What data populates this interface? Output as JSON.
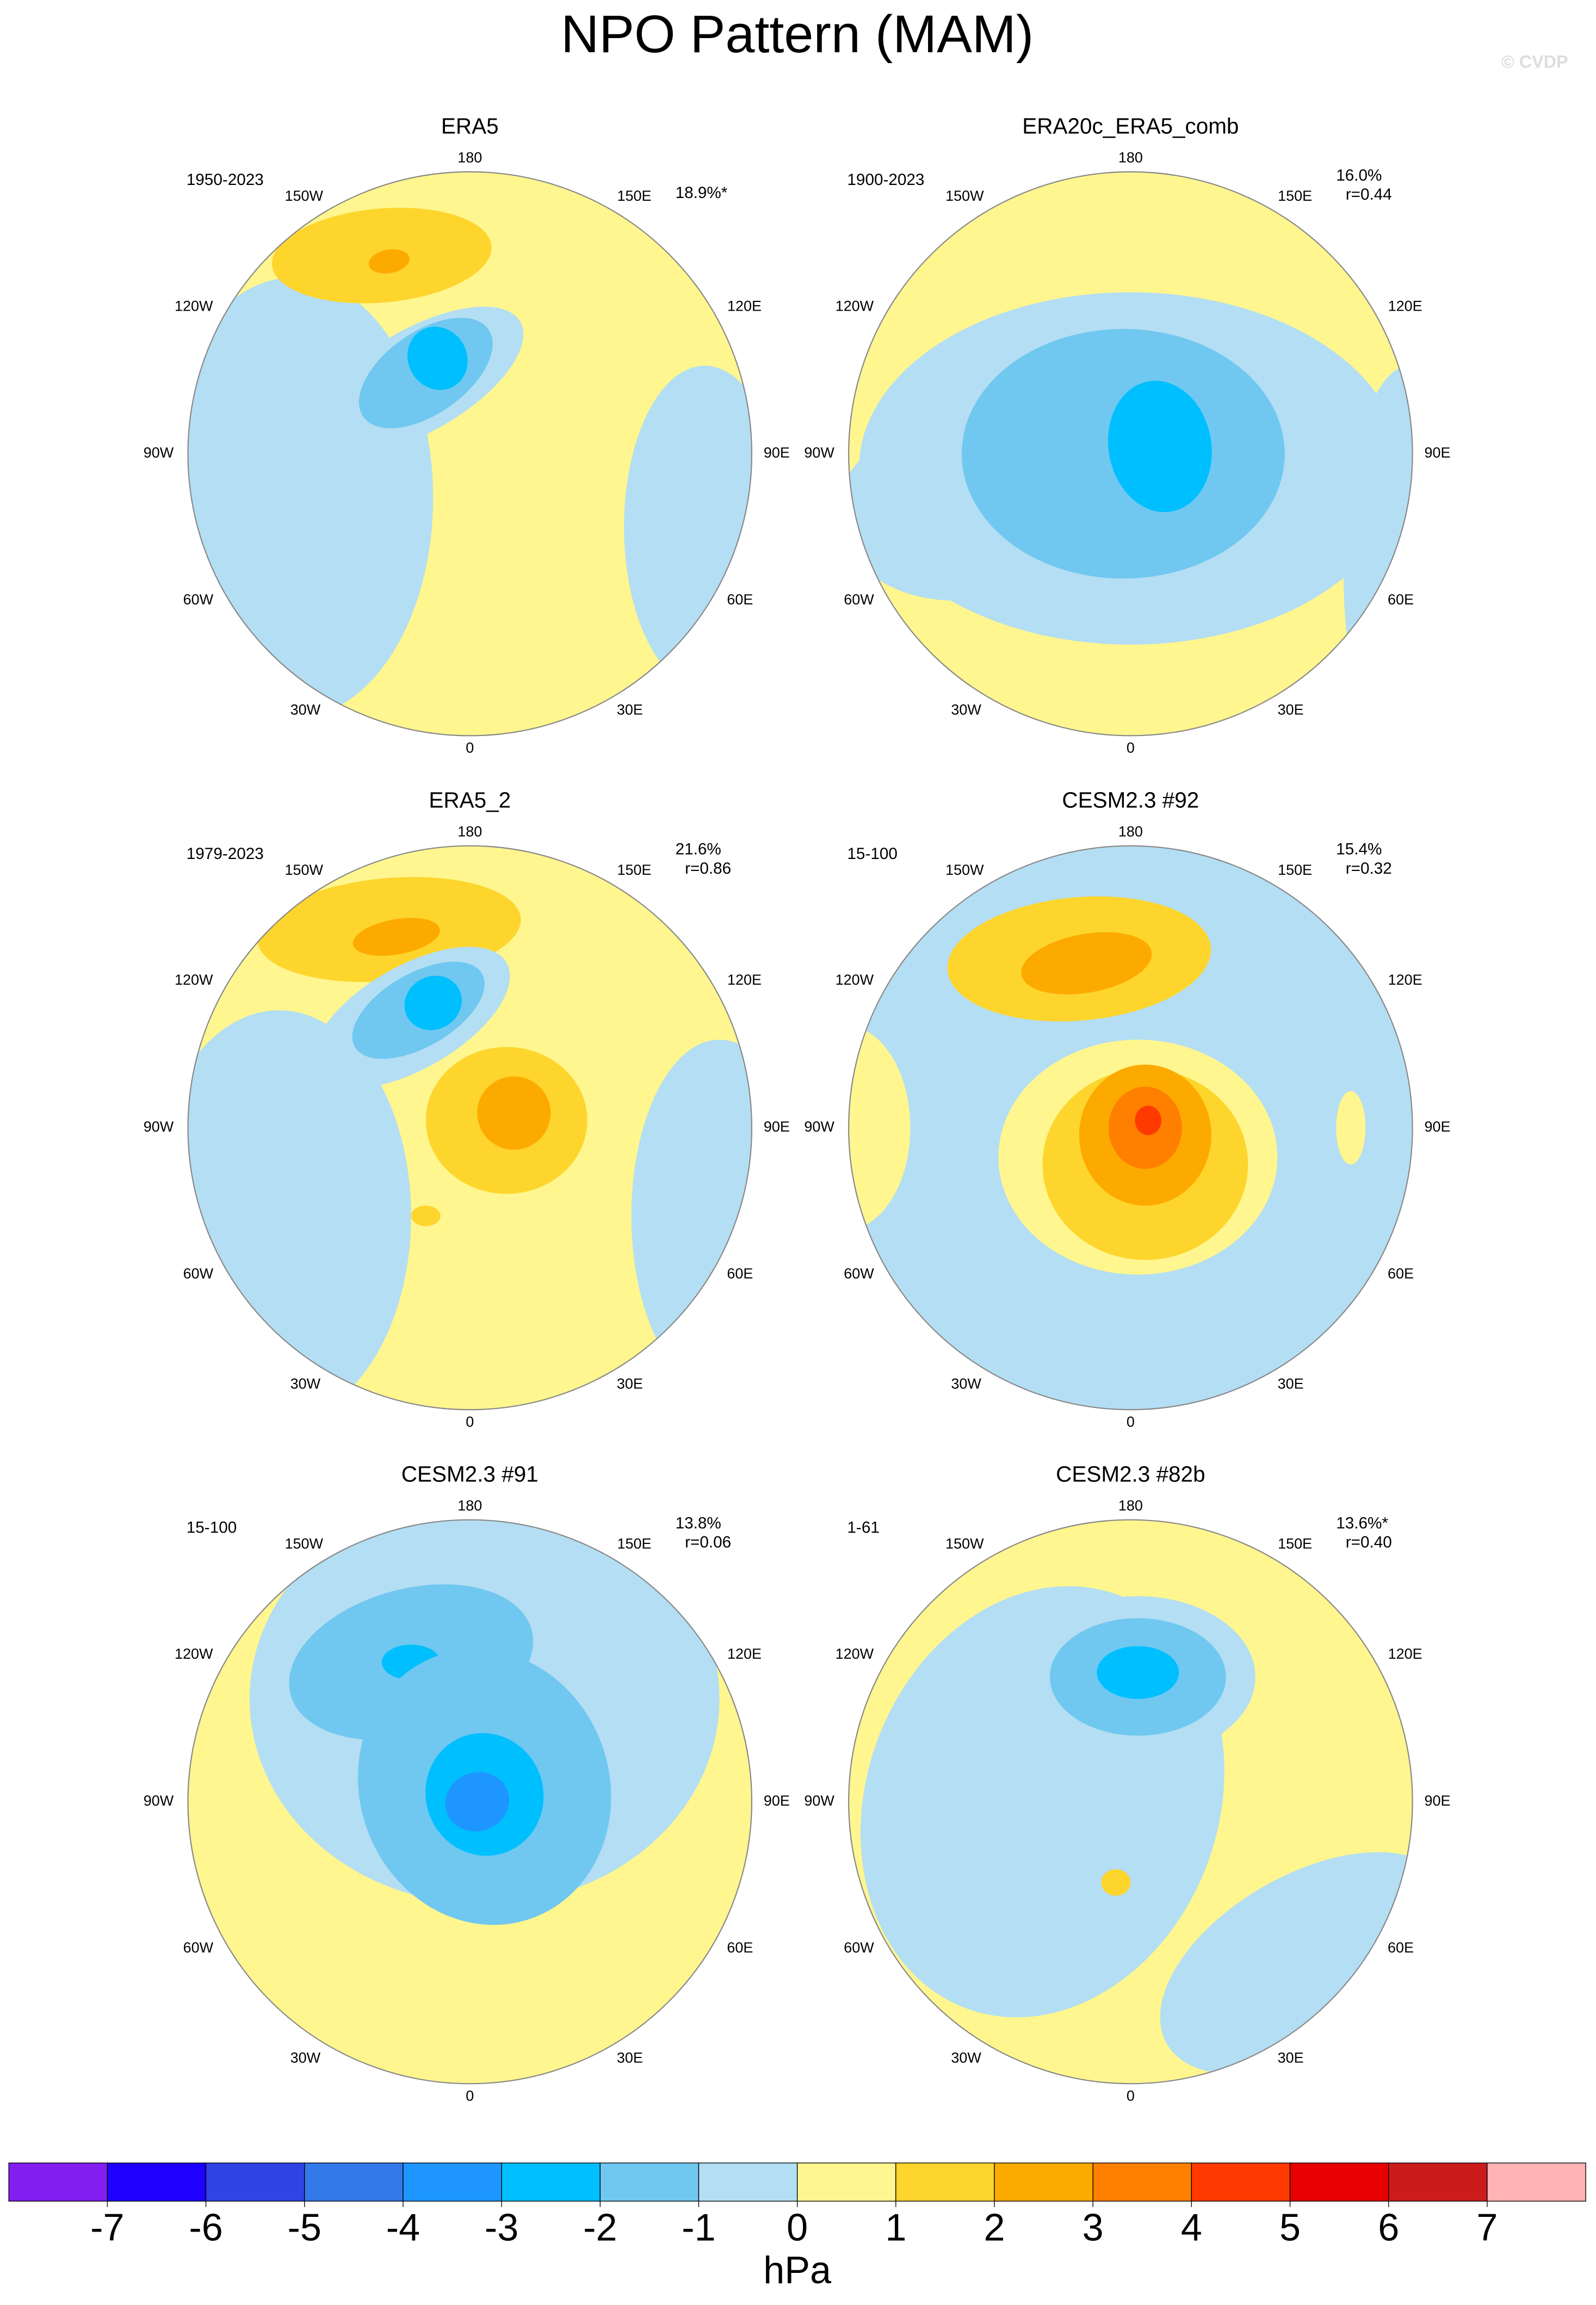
{
  "title": "NPO Pattern (MAM)",
  "watermark": "© CVDP",
  "longitude_labels": [
    "180",
    "150E",
    "120E",
    "90E",
    "60E",
    "30E",
    "0",
    "30W",
    "60W",
    "90W",
    "120W",
    "150W"
  ],
  "panels": [
    {
      "title": "ERA5",
      "period": "1950-2023",
      "variance": "18.9%*"
    },
    {
      "title": "ERA20c_ERA5_comb",
      "period": "1900-2023",
      "variance": "16.0%",
      "correlation": "r=0.44"
    },
    {
      "title": "ERA5_2",
      "period": "1979-2023",
      "variance": "21.6%",
      "correlation": "r=0.86"
    },
    {
      "title": "CESM2.3 #92",
      "period": "15-100",
      "variance": "15.4%",
      "correlation": "r=0.32"
    },
    {
      "title": "CESM2.3 #91",
      "period": "15-100",
      "variance": "13.8%",
      "correlation": "r=0.06"
    },
    {
      "title": "CESM2.3 #82b",
      "period": "1-61",
      "variance": "13.6%*",
      "correlation": "r=0.40"
    }
  ],
  "colorbar": {
    "colors": [
      "#821ef0",
      "#1e00ff",
      "#3044e6",
      "#3479ea",
      "#1e96ff",
      "#00bfff",
      "#70c8f0",
      "#b4def3",
      "#fff68f",
      "#fdd52d",
      "#fdaa00",
      "#ff7f00",
      "#ff3a00",
      "#e60000",
      "#cc1b1b",
      "#ffb3b3"
    ],
    "ticks": [
      -7,
      -6,
      -5,
      -4,
      -3,
      -2,
      -1,
      0,
      1,
      2,
      3,
      4,
      5,
      6,
      7
    ],
    "units": "hPa"
  }
}
